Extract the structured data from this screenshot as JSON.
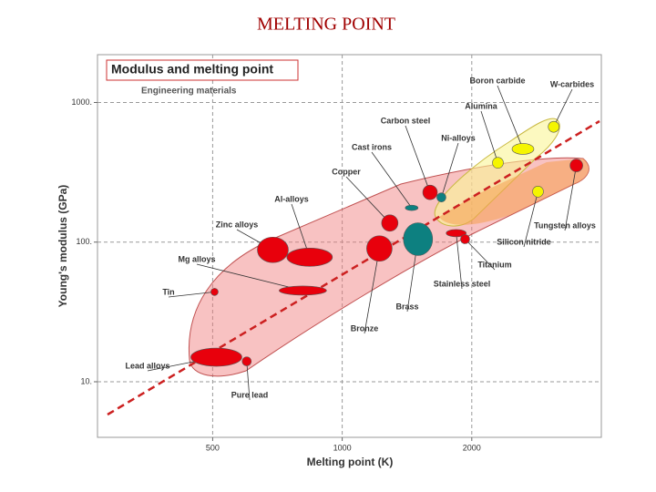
{
  "slide_title": "MELTING POINT",
  "chart_data": {
    "type": "scatter",
    "title": "Modulus and melting point",
    "subtitle": "Engineering materials",
    "x_label": "Melting point (K)",
    "y_label": "Young's modulus (GPa)",
    "log_x": true,
    "log_y": true,
    "grid": true,
    "xlim": [
      270,
      4000
    ],
    "ylim": [
      4,
      2200
    ],
    "xticks": [
      500,
      1000,
      2000
    ],
    "yticks": [
      {
        "value": 10,
        "label": "10."
      },
      {
        "value": 100,
        "label": "100."
      },
      {
        "value": 1000,
        "label": "1000."
      }
    ],
    "points": [
      {
        "name": "Lead alloys",
        "x": 510,
        "y": 15,
        "color": "#e8000c"
      },
      {
        "name": "Pure lead",
        "x": 600,
        "y": 14,
        "color": "#e8000c"
      },
      {
        "name": "Tin",
        "x": 505,
        "y": 44,
        "color": "#e8000c"
      },
      {
        "name": "Mg alloys",
        "x": 810,
        "y": 45,
        "color": "#e8000c"
      },
      {
        "name": "Zinc alloys",
        "x": 690,
        "y": 88,
        "color": "#e8000c"
      },
      {
        "name": "Al-alloys",
        "x": 840,
        "y": 78,
        "color": "#e8000c"
      },
      {
        "name": "Copper",
        "x": 1290,
        "y": 137,
        "color": "#e8000c"
      },
      {
        "name": "Bronze",
        "x": 1220,
        "y": 90,
        "color": "#e8000c"
      },
      {
        "name": "Brass",
        "x": 1500,
        "y": 105,
        "color": "#0d8080"
      },
      {
        "name": "Cast irons",
        "x": 1450,
        "y": 176,
        "color": "#0d8080"
      },
      {
        "name": "Carbon steel",
        "x": 1600,
        "y": 227,
        "color": "#e8000c"
      },
      {
        "name": "Ni-alloys",
        "x": 1700,
        "y": 209,
        "color": "#0d8080"
      },
      {
        "name": "Stainless steel",
        "x": 1840,
        "y": 116,
        "color": "#e8000c"
      },
      {
        "name": "Titanium",
        "x": 1930,
        "y": 105,
        "color": "#e8000c"
      },
      {
        "name": "Tungsten alloys",
        "x": 3500,
        "y": 354,
        "color": "#e8000c"
      },
      {
        "name": "Silicon nitride",
        "x": 2850,
        "y": 230,
        "color": "#f5f500"
      },
      {
        "name": "Alumina",
        "x": 2300,
        "y": 370,
        "color": "#f5f500"
      },
      {
        "name": "Boron carbide",
        "x": 2630,
        "y": 465,
        "color": "#f5f500"
      },
      {
        "name": "W-carbides",
        "x": 3100,
        "y": 670,
        "color": "#f5f500"
      }
    ]
  }
}
